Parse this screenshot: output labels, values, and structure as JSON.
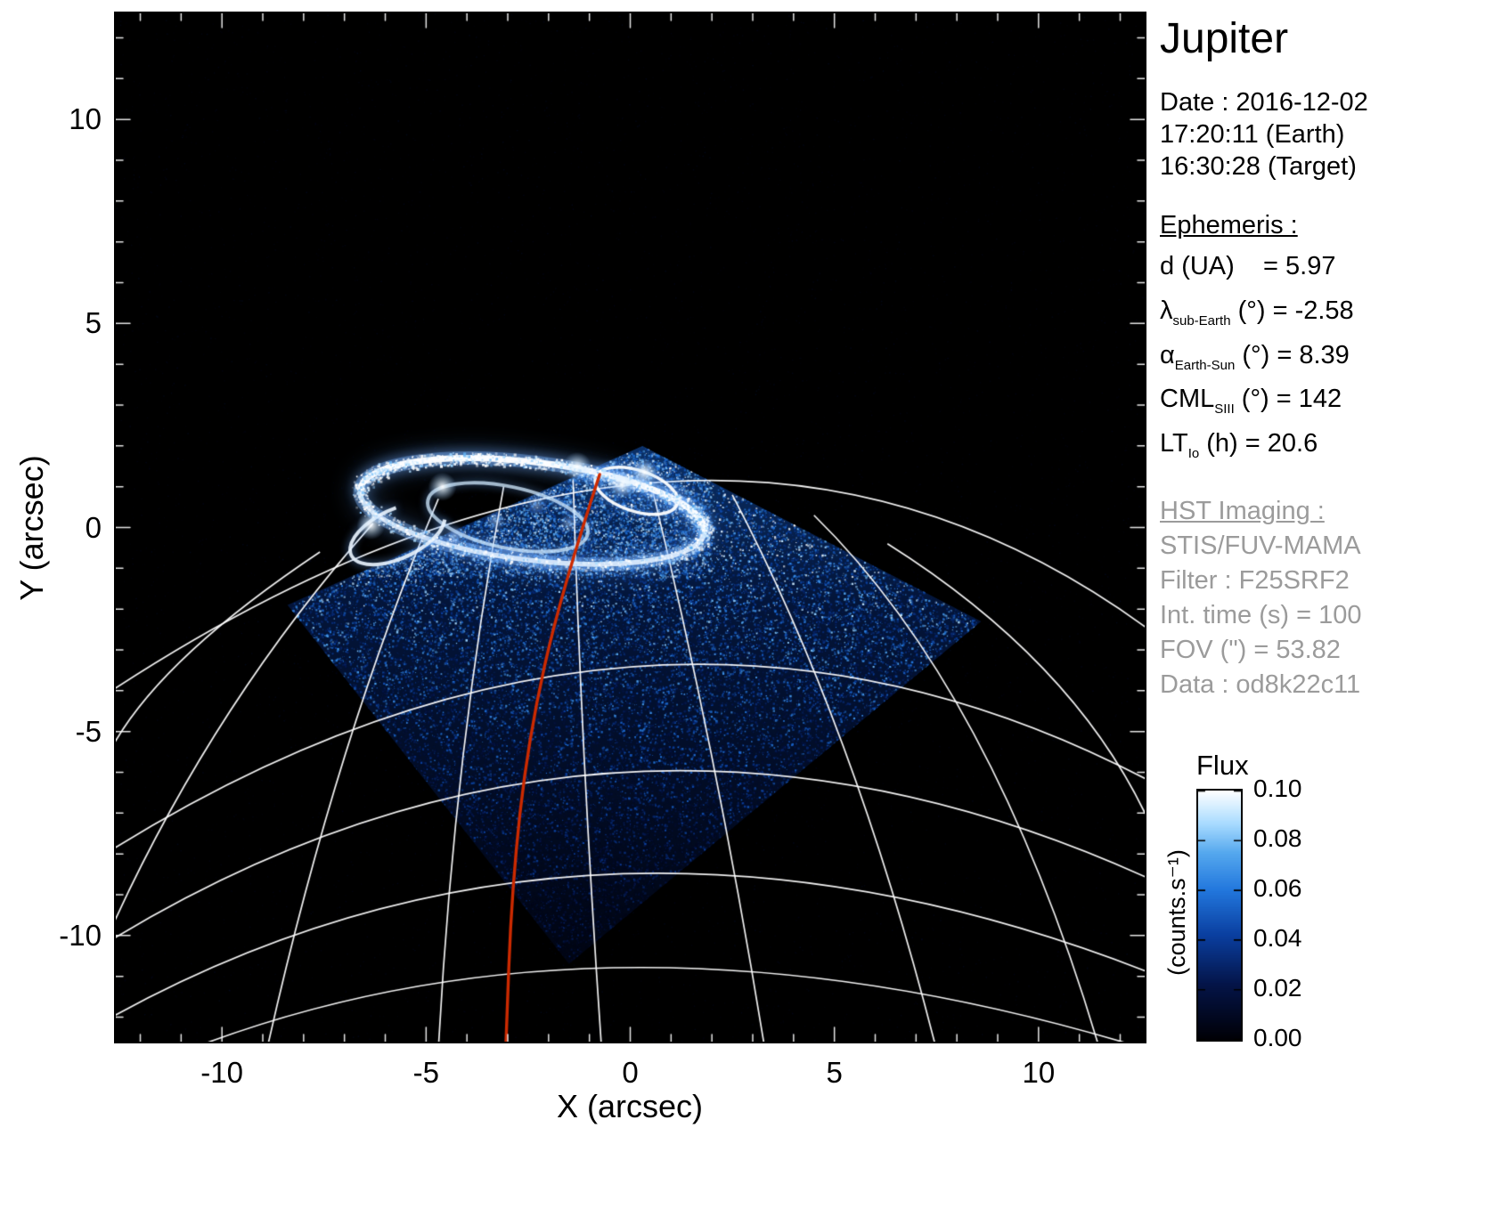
{
  "panel": {
    "title": "Jupiter",
    "date_line1": "Date : 2016-12-02",
    "date_line2": "17:20:11 (Earth)",
    "date_line3": "16:30:28 (Target)",
    "ephemeris_heading": "Ephemeris :",
    "ephemeris_rows": [
      {
        "sym": "d",
        "sub": "",
        "rest": " (UA)    = 5.97"
      },
      {
        "sym": "λ",
        "sub": "sub-Earth",
        "rest": " (°) = -2.58"
      },
      {
        "sym": "α",
        "sub": "Earth-Sun",
        "rest": " (°) = 8.39"
      },
      {
        "sym": "CML",
        "sub": "SIII",
        "rest": " (°) = 142"
      },
      {
        "sym": "LT",
        "sub": "Io",
        "rest": " (h) = 20.6"
      }
    ],
    "hst_heading": "HST Imaging :",
    "hst_lines": [
      "STIS/FUV-MAMA",
      "Filter : F25SRF2",
      "Int. time (s) = 100",
      "FOV (\") = 53.82",
      "Data : od8k22c11"
    ]
  },
  "colorbar": {
    "title": "Flux",
    "unit": "(counts.s⁻¹)",
    "ticks": [
      "0.10",
      "0.08",
      "0.06",
      "0.04",
      "0.02",
      "0.00"
    ]
  },
  "chart_data": {
    "type": "heatmap",
    "description": "HST STIS far-UV image of Jupiter northern aurora with planetary graticule, detector field-of-view and red footprint track",
    "xlabel": "X (arcsec)",
    "ylabel": "Y (arcsec)",
    "xlim": [
      -12.6,
      12.6
    ],
    "ylim": [
      -12.6,
      12.6
    ],
    "xticks": [
      -10,
      -5,
      0,
      5,
      10
    ],
    "yticks": [
      -10,
      -5,
      0,
      5,
      10
    ],
    "minor_tick_step": 1,
    "flux_min": 0.0,
    "flux_max": 0.1,
    "background_color": "#000000",
    "graticule_color": "#ffffff",
    "track_color": "#cc2a00",
    "colormap_stops": [
      [
        0,
        "#000006"
      ],
      [
        0.22,
        "#041448"
      ],
      [
        0.42,
        "#0a3fa0"
      ],
      [
        0.6,
        "#2277dd"
      ],
      [
        0.75,
        "#55a8ee"
      ],
      [
        0.87,
        "#aadcff"
      ],
      [
        1,
        "#ffffff"
      ]
    ],
    "fov_polygon": [
      [
        0.3,
        2.0
      ],
      [
        8.6,
        -2.3
      ],
      [
        -1.5,
        -10.7
      ],
      [
        -8.4,
        -1.9
      ]
    ],
    "aurora": {
      "main_oval": {
        "cx": -2.4,
        "cy": 0.4,
        "rx": 4.25,
        "ry": 1.2,
        "tilt_deg": -7
      },
      "inner_oval": {
        "cx": -3.0,
        "cy": 0.25,
        "rx": 2.0,
        "ry": 0.75,
        "tilt_deg": -12
      },
      "small_loop": {
        "cx": 0.15,
        "cy": 0.9,
        "rx": 1.05,
        "ry": 0.5,
        "tilt_deg": -18
      },
      "left_swirl": {
        "cx": -5.7,
        "cy": -0.15,
        "rx": 1.25,
        "ry": 0.6,
        "tilt_deg": 25
      },
      "bright_spots": [
        [
          0.35,
          1.35
        ],
        [
          -1.3,
          1.5
        ],
        [
          -4.6,
          1.0
        ],
        [
          -6.35,
          0.05
        ],
        [
          -0.2,
          1.05
        ]
      ],
      "inner_patches": [
        [
          -3.3,
          0.15
        ],
        [
          -2.3,
          0.55
        ],
        [
          -1.5,
          0.1
        ],
        [
          -4.3,
          -0.2
        ]
      ]
    },
    "footprint_track": [
      [
        -0.75,
        1.3
      ],
      [
        -1.7,
        -1.6
      ],
      [
        -2.5,
        -5.2
      ],
      [
        -2.9,
        -8.8
      ],
      [
        -3.05,
        -12.8
      ]
    ],
    "graticule": {
      "lat_arcs": [
        {
          "p0": [
            -12.7,
            -4.0
          ],
          "p1": [
            0.9,
            1.12
          ],
          "p2": [
            12.7,
            -2.5
          ]
        },
        {
          "p0": [
            -12.7,
            -7.9
          ],
          "p1": [
            0.2,
            -3.4
          ],
          "p2": [
            12.7,
            -6.2
          ]
        },
        {
          "p0": [
            -12.7,
            -10.1
          ],
          "p1": [
            -0.2,
            -6.0
          ],
          "p2": [
            12.7,
            -8.6
          ]
        },
        {
          "p0": [
            -12.7,
            -12.0
          ],
          "p1": [
            -0.5,
            -8.5
          ],
          "p2": [
            12.7,
            -10.9
          ]
        },
        {
          "p0": [
            -12.7,
            -13.6
          ],
          "p1": [
            -0.8,
            -10.8
          ],
          "p2": [
            12.7,
            -12.8
          ]
        }
      ],
      "meridians": [
        {
          "p0": [
            -7.6,
            -0.6
          ],
          "c": [
            -11.5,
            -3.2
          ],
          "p2": [
            -12.7,
            -5.4
          ]
        },
        {
          "p0": [
            -6.3,
            0.1
          ],
          "c": [
            -10.2,
            -4.3
          ],
          "p2": [
            -12.7,
            -9.8
          ]
        },
        {
          "p0": [
            -4.7,
            0.7
          ],
          "c": [
            -7.2,
            -5.2
          ],
          "p2": [
            -8.9,
            -12.8
          ]
        },
        {
          "p0": [
            -3.1,
            1.0
          ],
          "c": [
            -4.3,
            -5.4
          ],
          "p2": [
            -4.7,
            -12.8
          ]
        },
        {
          "p0": [
            -1.4,
            1.18
          ],
          "c": [
            -1.2,
            -5.6
          ],
          "p2": [
            -0.7,
            -12.8
          ]
        },
        {
          "p0": [
            0.5,
            1.1
          ],
          "c": [
            2.1,
            -5.4
          ],
          "p2": [
            3.3,
            -12.8
          ]
        },
        {
          "p0": [
            2.5,
            0.8
          ],
          "c": [
            5.5,
            -4.9
          ],
          "p2": [
            7.5,
            -12.8
          ]
        },
        {
          "p0": [
            4.5,
            0.3
          ],
          "c": [
            8.9,
            -4.0
          ],
          "p2": [
            11.5,
            -12.8
          ]
        },
        {
          "p0": [
            6.3,
            -0.4
          ],
          "c": [
            10.9,
            -3.3
          ],
          "p2": [
            12.7,
            -7.2
          ]
        }
      ]
    }
  }
}
